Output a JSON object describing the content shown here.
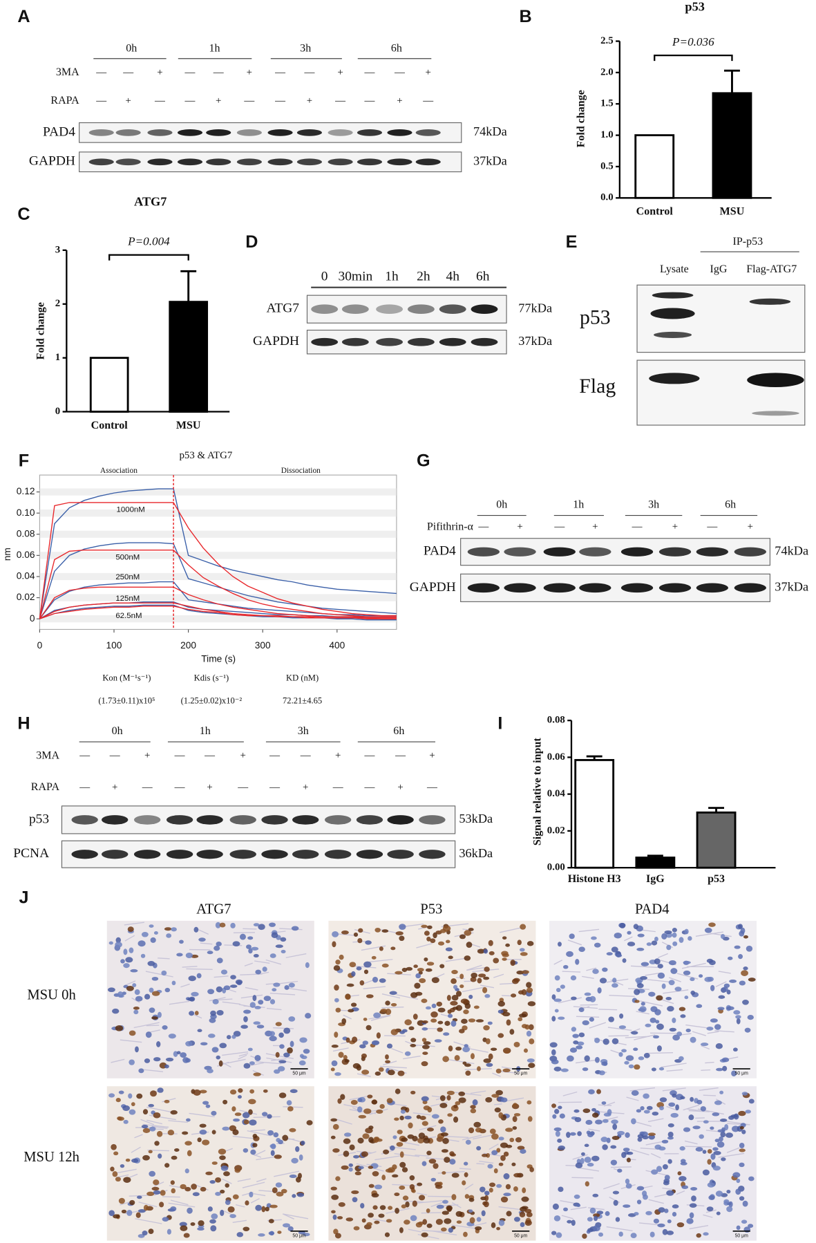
{
  "panel_labels": [
    "A",
    "B",
    "C",
    "D",
    "E",
    "F",
    "G",
    "H",
    "I",
    "J"
  ],
  "chart_data": [
    {
      "type": "bar",
      "title": "p53",
      "annotation": "P=0.036",
      "y_label": "Fold change",
      "categories": [
        "Control",
        "MSU"
      ],
      "values": [
        1,
        1.67
      ],
      "errors": [
        null,
        0.36
      ],
      "colors": [
        "#ffffff",
        "#000000"
      ],
      "ylim": [
        0,
        2.5
      ],
      "yticks": [
        {
          "value": 0,
          "label": "0.0"
        },
        {
          "value": 0.5,
          "label": "0.5"
        },
        {
          "value": 1,
          "label": "1.0"
        },
        {
          "value": 1.5,
          "label": "1.5"
        },
        {
          "value": 2,
          "label": "2.0"
        },
        {
          "value": 2.5,
          "label": "2.5"
        }
      ]
    },
    {
      "type": "bar",
      "title": "ATG7",
      "annotation": "P=0.004",
      "y_label": "Fold change",
      "categories": [
        "Control",
        "MSU"
      ],
      "values": [
        1,
        2.04
      ],
      "errors": [
        null,
        0.57
      ],
      "colors": [
        "#ffffff",
        "#000000"
      ],
      "ylim": [
        0,
        3
      ],
      "yticks": [
        0,
        1,
        2,
        3
      ]
    },
    {
      "type": "line",
      "title": "p53 & ATG7",
      "annotations": [
        "Association",
        "Dissociation"
      ],
      "x_label": "Time (s)",
      "y_label": "nm",
      "vline": 180,
      "grid": true,
      "x": [
        0,
        20,
        40,
        60,
        80,
        100,
        120,
        140,
        160,
        180,
        200,
        220,
        240,
        260,
        280,
        300,
        320,
        340,
        360,
        380,
        400,
        420,
        440,
        460,
        480
      ],
      "xlim": [
        0,
        480
      ],
      "xticks": [
        0,
        100,
        200,
        300,
        400
      ],
      "ylim": [
        -0.01,
        0.13
      ],
      "yticks": [
        0,
        0.02,
        0.04,
        0.06,
        0.08,
        {
          "value": 0.1,
          "label": "0.10"
        },
        0.12
      ],
      "series": [
        {
          "name": "1000nM",
          "color": "#3a5fa8",
          "values": [
            0,
            0.09,
            0.105,
            0.112,
            0.116,
            0.119,
            0.121,
            0.122,
            0.123,
            0.123,
            0.06,
            0.055,
            0.05,
            0.046,
            0.043,
            0.04,
            0.037,
            0.035,
            0.032,
            0.03,
            0.028,
            0.027,
            0.026,
            0.025,
            0.024
          ]
        },
        {
          "name": "500nM",
          "color": "#3a5fa8",
          "values": [
            0,
            0.045,
            0.06,
            0.066,
            0.069,
            0.071,
            0.072,
            0.072,
            0.072,
            0.071,
            0.038,
            0.034,
            0.03,
            0.026,
            0.022,
            0.019,
            0.016,
            0.014,
            0.012,
            0.01,
            0.009,
            0.008,
            0.007,
            0.006,
            0.005
          ]
        },
        {
          "name": "250nM",
          "color": "#3a5fa8",
          "values": [
            0,
            0.018,
            0.026,
            0.03,
            0.032,
            0.033,
            0.034,
            0.034,
            0.035,
            0.035,
            0.018,
            0.016,
            0.014,
            0.012,
            0.01,
            0.009,
            0.008,
            0.007,
            0.006,
            0.005,
            0.004,
            0.004,
            0.003,
            0.003,
            0.003
          ]
        },
        {
          "name": "125nM",
          "color": "#3a5fa8",
          "values": [
            0,
            0.008,
            0.011,
            0.013,
            0.014,
            0.015,
            0.015,
            0.016,
            0.016,
            0.016,
            0.011,
            0.009,
            0.008,
            0.007,
            0.006,
            0.005,
            0.004,
            0.004,
            0.003,
            0.003,
            0.002,
            0.002,
            0.002,
            0.002,
            0.002
          ]
        },
        {
          "name": "62.5nM",
          "color": "#3a5fa8",
          "values": [
            0,
            0.005,
            0.008,
            0.01,
            0.011,
            0.012,
            0.012,
            0.013,
            0.013,
            0.013,
            0.008,
            0.006,
            0.005,
            0.004,
            0.003,
            0.002,
            0.002,
            0.001,
            0.001,
            0.001,
            0,
            0,
            -0.001,
            -0.001,
            -0.001
          ]
        },
        {
          "color": "#e8262a",
          "values": [
            0,
            0.107,
            0.11,
            0.11,
            0.11,
            0.11,
            0.11,
            0.11,
            0.11,
            0.11,
            0.086,
            0.067,
            0.052,
            0.04,
            0.031,
            0.025,
            0.019,
            0.015,
            0.012,
            0.009,
            0.007,
            0.005,
            0.004,
            0.003,
            0.003
          ]
        },
        {
          "color": "#e8262a",
          "values": [
            0,
            0.056,
            0.064,
            0.065,
            0.065,
            0.065,
            0.065,
            0.065,
            0.065,
            0.065,
            0.051,
            0.039,
            0.031,
            0.024,
            0.018,
            0.014,
            0.011,
            0.009,
            0.007,
            0.005,
            0.004,
            0.003,
            0.002,
            0.002,
            0.002
          ]
        },
        {
          "color": "#e8262a",
          "values": [
            0,
            0.02,
            0.027,
            0.029,
            0.03,
            0.03,
            0.03,
            0.03,
            0.03,
            0.03,
            0.023,
            0.018,
            0.014,
            0.011,
            0.009,
            0.007,
            0.005,
            0.004,
            0.003,
            0.002,
            0.002,
            0.002,
            0.001,
            0.001,
            0.001
          ]
        },
        {
          "color": "#e8262a",
          "values": [
            0,
            0.007,
            0.011,
            0.013,
            0.014,
            0.015,
            0.015,
            0.015,
            0.015,
            0.015,
            0.012,
            0.009,
            0.007,
            0.005,
            0.004,
            0.003,
            0.003,
            0.002,
            0.002,
            0.001,
            0.001,
            0.001,
            0.001,
            0,
            0
          ]
        },
        {
          "color": "#e8262a",
          "values": [
            0,
            0.005,
            0.007,
            0.009,
            0.01,
            0.011,
            0.011,
            0.012,
            0.012,
            0.012,
            0.009,
            0.007,
            0.006,
            0.004,
            0.003,
            0.003,
            0.002,
            0.002,
            0.001,
            0.001,
            0.001,
            0.001,
            0,
            0,
            0
          ]
        }
      ]
    },
    {
      "type": "bar",
      "y_label": "Signal relative to input",
      "categories": [
        "Histone H3",
        "IgG",
        "p53"
      ],
      "values": [
        0.0585,
        0.0055,
        0.03
      ],
      "errors": [
        0.002,
        0.001,
        0.0025
      ],
      "colors": [
        "#ffffff",
        "#000000",
        "#666666"
      ],
      "ylim": [
        0,
        0.08
      ],
      "yticks": [
        {
          "value": 0,
          "label": "0.00"
        },
        {
          "value": 0.02,
          "label": "0.02"
        },
        {
          "value": 0.04,
          "label": "0.04"
        },
        {
          "value": 0.06,
          "label": "0.06"
        },
        {
          "value": 0.08,
          "label": "0.08"
        }
      ]
    }
  ],
  "binding_table": {
    "headers": [
      "Kon (M⁻¹s⁻¹)",
      "Kdis (s⁻¹)",
      "KD (nM)"
    ],
    "values": [
      "(1.73±0.11)x10⁵",
      "(1.25±0.02)x10⁻²",
      "72.21±4.65"
    ]
  },
  "blot_a": {
    "timepoints": [
      "0h",
      "1h",
      "3h",
      "6h"
    ],
    "treatments": [
      {
        "name": "3MA",
        "signs": [
          "—",
          "—",
          "+",
          "—",
          "—",
          "+",
          "—",
          "—",
          "+",
          "—",
          "—",
          "+"
        ]
      },
      {
        "name": "RAPA",
        "signs": [
          "—",
          "+",
          "—",
          "—",
          "+",
          "—",
          "—",
          "+",
          "—",
          "—",
          "+",
          "—"
        ]
      }
    ],
    "bands": [
      {
        "name": "PAD4",
        "size": "74kDa"
      },
      {
        "name": "GAPDH",
        "size": "37kDa"
      }
    ]
  },
  "blot_d": {
    "timepoints": [
      "0",
      "30min",
      "1h",
      "2h",
      "4h",
      "6h"
    ],
    "bands": [
      {
        "name": "ATG7",
        "size": "77kDa"
      },
      {
        "name": "GAPDH",
        "size": "37kDa"
      }
    ]
  },
  "blot_e": {
    "group": "IP-p53",
    "lanes": [
      "Lysate",
      "IgG",
      "Flag-ATG7"
    ],
    "bands": [
      "p53",
      "Flag"
    ]
  },
  "blot_g": {
    "timepoints": [
      "0h",
      "1h",
      "3h",
      "6h"
    ],
    "treatments": [
      {
        "name": "Pifithrin-α",
        "signs": [
          "—",
          "+",
          "—",
          "+",
          "—",
          "+",
          "—",
          "+"
        ]
      }
    ],
    "bands": [
      {
        "name": "PAD4",
        "size": "74kDa"
      },
      {
        "name": "GAPDH",
        "size": "37kDa"
      }
    ]
  },
  "blot_h": {
    "timepoints": [
      "0h",
      "1h",
      "3h",
      "6h"
    ],
    "treatments": [
      {
        "name": "3MA",
        "signs": [
          "—",
          "—",
          "+",
          "—",
          "—",
          "+",
          "—",
          "—",
          "+",
          "—",
          "—",
          "+"
        ]
      },
      {
        "name": "RAPA",
        "signs": [
          "—",
          "+",
          "—",
          "—",
          "+",
          "—",
          "—",
          "+",
          "—",
          "—",
          "+",
          "—"
        ]
      }
    ],
    "bands": [
      {
        "name": "p53",
        "size": "53kDa"
      },
      {
        "name": "PCNA",
        "size": "36kDa"
      }
    ]
  },
  "ihc": {
    "columns": [
      "ATG7",
      "P53",
      "PAD4"
    ],
    "rows": [
      "MSU 0h",
      "MSU 12h"
    ],
    "scale_bar": "50 μm"
  }
}
